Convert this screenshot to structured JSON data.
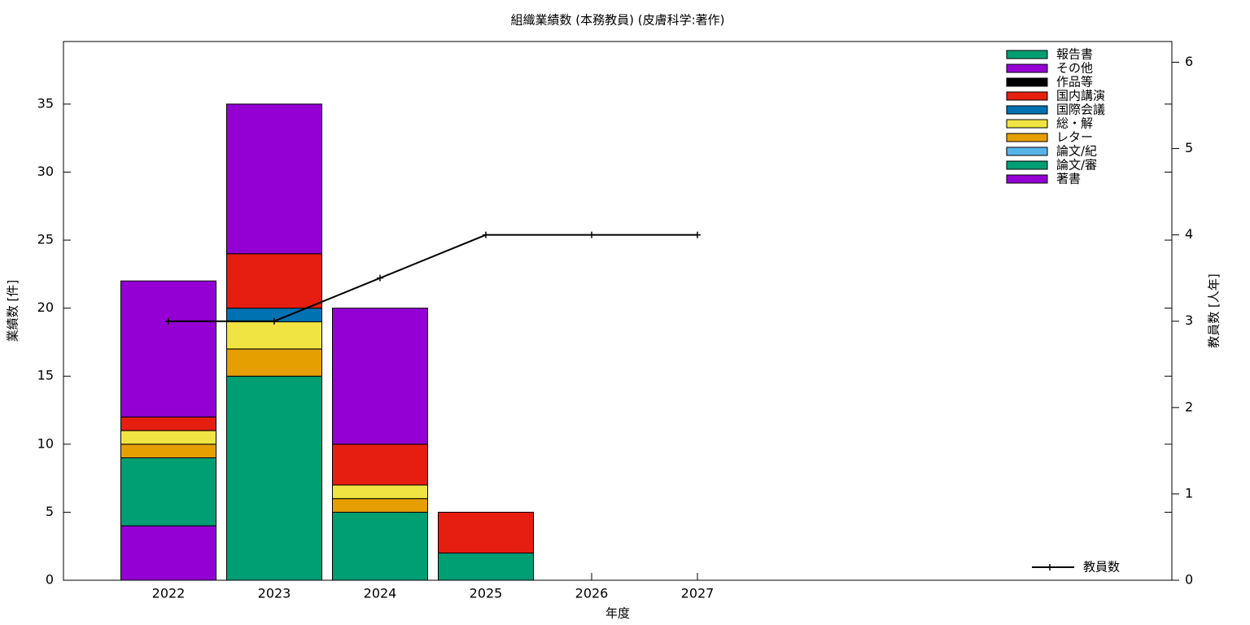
{
  "chart_data": {
    "type": "bar",
    "title": "組織業績数 (本務教員) (皮膚科学:著作)",
    "x_label": "年度",
    "y_label": "業績数 [件]",
    "y2_label": "教員数 [人年]",
    "categories": [
      "2022",
      "2023",
      "2024",
      "2025",
      "2026",
      "2027"
    ],
    "stacked": true,
    "series": [
      {
        "name": "報告書",
        "color": "#009e73",
        "values": [
          0,
          0,
          0,
          0,
          0,
          0
        ]
      },
      {
        "name": "その他",
        "color": "#9400d3",
        "values": [
          10,
          11,
          10,
          0,
          0,
          0
        ]
      },
      {
        "name": "作品等",
        "color": "#000000",
        "values": [
          0,
          0,
          0,
          0,
          0,
          0
        ]
      },
      {
        "name": "国内講演",
        "color": "#e51e10",
        "values": [
          1,
          4,
          3,
          3,
          0,
          0
        ]
      },
      {
        "name": "国際会議",
        "color": "#0072b2",
        "values": [
          0,
          1,
          0,
          0,
          0,
          0
        ]
      },
      {
        "name": "総・解",
        "color": "#f0e442",
        "values": [
          1,
          2,
          1,
          0,
          0,
          0
        ]
      },
      {
        "name": "レター",
        "color": "#e69f00",
        "values": [
          1,
          2,
          1,
          0,
          0,
          0
        ]
      },
      {
        "name": "論文/紀",
        "color": "#56b4e9",
        "values": [
          0,
          0,
          0,
          0,
          0,
          0
        ]
      },
      {
        "name": "論文/審",
        "color": "#009e73",
        "values": [
          5,
          15,
          5,
          2,
          0,
          0
        ]
      },
      {
        "name": "著書",
        "color": "#9400d3",
        "values": [
          4,
          0,
          0,
          0,
          0,
          0
        ]
      },
      {
        "name": "教員数",
        "color": "#000000",
        "type": "line",
        "axis": "y2",
        "values": [
          3,
          3,
          3.5,
          4,
          4,
          4
        ]
      }
    ],
    "ylim": [
      0,
      39.6
    ],
    "yticks": [
      0,
      5,
      10,
      15,
      20,
      25,
      30,
      35
    ],
    "y2lim": [
      0,
      6.24
    ],
    "y2ticks": [
      0,
      1,
      2,
      3,
      4,
      5,
      6
    ],
    "legend": "top-right"
  }
}
